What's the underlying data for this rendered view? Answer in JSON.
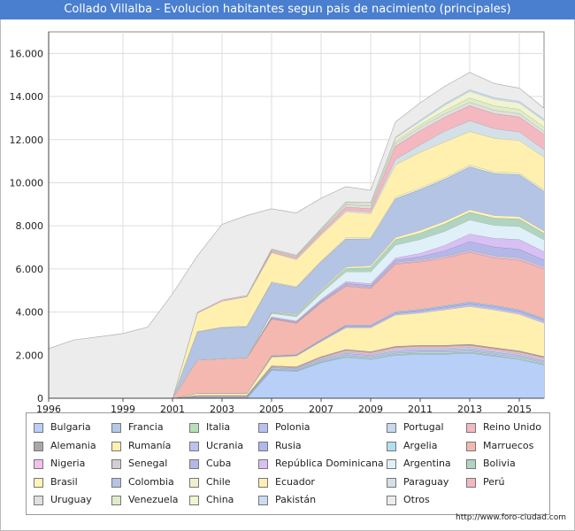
{
  "title": "Collado Villalba - Evolucion habitantes segun pais de nacimiento (principales)",
  "source": "http://www.foro-ciudad.com",
  "chart_data": {
    "type": "area",
    "stacked": true,
    "grid": true,
    "legend_position": "bottom",
    "x": [
      1996,
      1997,
      1998,
      1999,
      2000,
      2001,
      2002,
      2003,
      2004,
      2005,
      2006,
      2007,
      2008,
      2009,
      2010,
      2011,
      2012,
      2013,
      2014,
      2015,
      2016
    ],
    "xticks": [
      "1996",
      "1999",
      "2001",
      "2003",
      "2005",
      "2007",
      "2009",
      "2011",
      "2013",
      "2015"
    ],
    "xlim": [
      1996,
      2016
    ],
    "ylim": [
      0,
      17000
    ],
    "yticks": [
      "0",
      "2.000",
      "4.000",
      "6.000",
      "8.000",
      "10.000",
      "12.000",
      "14.000",
      "16.000"
    ],
    "series": [
      {
        "name": "Bulgaria",
        "color": "#b8d0f8",
        "values": [
          0,
          0,
          0,
          0,
          0,
          0,
          0,
          0,
          0,
          1300,
          1250,
          1650,
          1900,
          1800,
          2000,
          2050,
          2050,
          2100,
          1950,
          1800,
          1550
        ]
      },
      {
        "name": "Francia",
        "color": "#b4c8e8",
        "values": [
          0,
          0,
          0,
          0,
          0,
          0,
          20,
          20,
          20,
          30,
          30,
          35,
          40,
          40,
          40,
          40,
          40,
          40,
          40,
          40,
          40
        ]
      },
      {
        "name": "Italia",
        "color": "#b8e0b8",
        "values": [
          0,
          0,
          0,
          0,
          0,
          0,
          20,
          20,
          20,
          30,
          30,
          40,
          50,
          50,
          60,
          60,
          60,
          60,
          60,
          60,
          60
        ]
      },
      {
        "name": "Polonia",
        "color": "#b8c0f0",
        "values": [
          0,
          0,
          0,
          0,
          0,
          0,
          30,
          30,
          30,
          60,
          60,
          80,
          100,
          100,
          110,
          110,
          110,
          110,
          100,
          100,
          90
        ]
      },
      {
        "name": "Portugal",
        "color": "#c8d8f0",
        "values": [
          0,
          0,
          0,
          0,
          0,
          0,
          20,
          20,
          20,
          30,
          30,
          40,
          50,
          50,
          60,
          60,
          60,
          60,
          60,
          60,
          60
        ]
      },
      {
        "name": "Reino Unido",
        "color": "#f4b8c0",
        "values": [
          0,
          0,
          0,
          0,
          0,
          0,
          20,
          20,
          20,
          30,
          30,
          50,
          80,
          80,
          90,
          90,
          90,
          90,
          90,
          90,
          90
        ]
      },
      {
        "name": "Alemania",
        "color": "#a8a8a8",
        "values": [
          0,
          0,
          0,
          0,
          0,
          0,
          20,
          20,
          20,
          30,
          30,
          40,
          50,
          50,
          50,
          50,
          50,
          50,
          50,
          50,
          50
        ]
      },
      {
        "name": "Rumanía",
        "color": "#fff0b0",
        "values": [
          0,
          0,
          0,
          0,
          0,
          0,
          100,
          100,
          100,
          400,
          500,
          700,
          1000,
          1100,
          1450,
          1500,
          1650,
          1750,
          1750,
          1700,
          1550
        ]
      },
      {
        "name": "Ucrania",
        "color": "#c0c0f0",
        "values": [
          0,
          0,
          0,
          0,
          0,
          0,
          0,
          0,
          0,
          30,
          30,
          40,
          60,
          60,
          70,
          80,
          90,
          100,
          100,
          100,
          100
        ]
      },
      {
        "name": "Rusia",
        "color": "#b0b8f0",
        "values": [
          0,
          0,
          0,
          0,
          0,
          0,
          0,
          0,
          0,
          20,
          20,
          30,
          40,
          40,
          50,
          50,
          60,
          70,
          70,
          70,
          70
        ]
      },
      {
        "name": "Argelia",
        "color": "#b0e0f0",
        "values": [
          0,
          0,
          0,
          0,
          0,
          0,
          0,
          0,
          0,
          20,
          20,
          20,
          30,
          30,
          40,
          40,
          40,
          40,
          40,
          40,
          40
        ]
      },
      {
        "name": "Marruecos",
        "color": "#f4b8b0",
        "values": [
          0,
          0,
          0,
          0,
          0,
          0,
          1550,
          1600,
          1650,
          1700,
          1450,
          1700,
          1800,
          1700,
          2200,
          2200,
          2200,
          2300,
          2200,
          2300,
          2300
        ]
      },
      {
        "name": "Nigeria",
        "color": "#f0c0f0",
        "values": [
          0,
          0,
          0,
          0,
          0,
          0,
          0,
          0,
          0,
          20,
          20,
          20,
          30,
          30,
          40,
          40,
          40,
          50,
          50,
          50,
          50
        ]
      },
      {
        "name": "Senegal",
        "color": "#d0d0d0",
        "values": [
          0,
          0,
          0,
          0,
          0,
          0,
          0,
          0,
          0,
          20,
          20,
          30,
          40,
          40,
          50,
          50,
          60,
          60,
          60,
          60,
          60
        ]
      },
      {
        "name": "Cuba",
        "color": "#b4b8e8",
        "values": [
          0,
          0,
          0,
          0,
          0,
          0,
          0,
          0,
          0,
          30,
          30,
          50,
          70,
          70,
          100,
          150,
          250,
          400,
          400,
          400,
          300
        ]
      },
      {
        "name": "República Dominicana",
        "color": "#d8c0f4",
        "values": [
          0,
          0,
          0,
          0,
          0,
          0,
          0,
          0,
          0,
          40,
          40,
          60,
          80,
          80,
          100,
          150,
          250,
          350,
          400,
          450,
          400
        ]
      },
      {
        "name": "Argentina",
        "color": "#e0f0f8",
        "values": [
          0,
          0,
          0,
          0,
          0,
          0,
          0,
          0,
          0,
          150,
          200,
          300,
          450,
          550,
          600,
          650,
          650,
          650,
          600,
          600,
          550
        ]
      },
      {
        "name": "Bolivia",
        "color": "#b0d4c0",
        "values": [
          0,
          0,
          0,
          0,
          0,
          0,
          0,
          0,
          0,
          50,
          70,
          100,
          150,
          200,
          250,
          300,
          350,
          350,
          350,
          350,
          300
        ]
      },
      {
        "name": "Brasil",
        "color": "#fff4b8",
        "values": [
          0,
          0,
          0,
          0,
          0,
          0,
          0,
          0,
          0,
          30,
          40,
          50,
          70,
          80,
          100,
          120,
          120,
          120,
          110,
          110,
          100
        ]
      },
      {
        "name": "Colombia",
        "color": "#b4c4e4",
        "values": [
          0,
          0,
          0,
          0,
          0,
          0,
          1300,
          1450,
          1450,
          1350,
          1250,
          1300,
          1300,
          1250,
          1800,
          1900,
          1950,
          2000,
          1950,
          1950,
          1850
        ]
      },
      {
        "name": "Chile",
        "color": "#f0f0d0",
        "values": [
          0,
          0,
          0,
          0,
          0,
          0,
          20,
          30,
          30,
          40,
          40,
          50,
          60,
          70,
          80,
          80,
          80,
          80,
          80,
          80,
          80
        ]
      },
      {
        "name": "Ecuador",
        "color": "#fff0b0",
        "values": [
          0,
          0,
          0,
          0,
          0,
          0,
          850,
          1200,
          1350,
          1350,
          1250,
          1200,
          1200,
          1100,
          1500,
          1650,
          1650,
          1550,
          1550,
          1500,
          1500
        ]
      },
      {
        "name": "Paraguay",
        "color": "#d4e0e8",
        "values": [
          0,
          0,
          0,
          0,
          0,
          0,
          0,
          0,
          0,
          20,
          30,
          50,
          80,
          80,
          250,
          350,
          500,
          500,
          450,
          400,
          350
        ]
      },
      {
        "name": "Perú",
        "color": "#f4b8c0",
        "values": [
          0,
          0,
          0,
          0,
          0,
          0,
          50,
          60,
          70,
          80,
          80,
          100,
          150,
          150,
          600,
          650,
          650,
          700,
          700,
          700,
          700
        ]
      },
      {
        "name": "Uruguay",
        "color": "#e0e0e0",
        "values": [
          0,
          0,
          0,
          0,
          0,
          0,
          0,
          0,
          0,
          30,
          40,
          60,
          100,
          120,
          150,
          160,
          160,
          160,
          160,
          150,
          140
        ]
      },
      {
        "name": "Venezuela",
        "color": "#e0ecc8",
        "values": [
          0,
          0,
          0,
          0,
          0,
          0,
          0,
          0,
          0,
          20,
          20,
          30,
          50,
          60,
          100,
          120,
          150,
          200,
          200,
          200,
          200
        ]
      },
      {
        "name": "China",
        "color": "#f0f4d0",
        "values": [
          0,
          0,
          0,
          0,
          0,
          0,
          0,
          0,
          0,
          20,
          30,
          40,
          60,
          80,
          130,
          150,
          250,
          300,
          300,
          300,
          300
        ]
      },
      {
        "name": "Pakistán",
        "color": "#c8dcf4",
        "values": [
          0,
          0,
          0,
          0,
          0,
          0,
          0,
          0,
          0,
          10,
          10,
          20,
          30,
          40,
          50,
          60,
          70,
          80,
          80,
          80,
          80
        ]
      },
      {
        "name": "Otros",
        "color": "#ececec",
        "values": [
          2300,
          2700,
          2850,
          3000,
          3300,
          4850,
          2600,
          3500,
          3700,
          1850,
          1950,
          1400,
          700,
          550,
          700,
          800,
          800,
          800,
          650,
          600,
          500
        ]
      }
    ]
  }
}
